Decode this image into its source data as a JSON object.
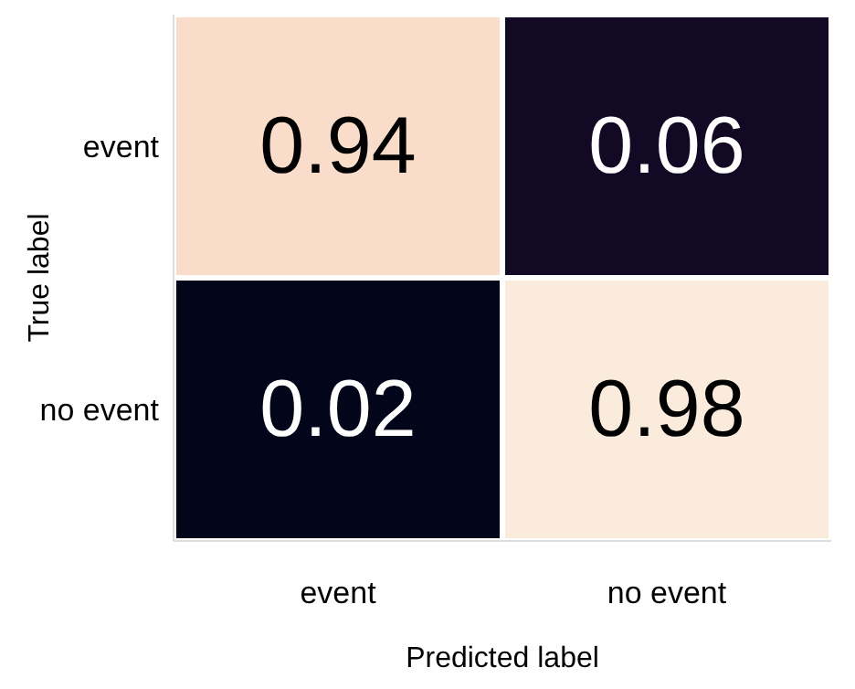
{
  "chart_data": {
    "type": "heatmap",
    "xlabel": "Predicted label",
    "ylabel": "True label",
    "data_labels": true,
    "categories": [
      "event",
      "no event"
    ],
    "y_categories": [
      "event",
      "no event"
    ],
    "cells": [
      [
        0.94,
        0.06
      ],
      [
        0.02,
        0.98
      ]
    ]
  }
}
